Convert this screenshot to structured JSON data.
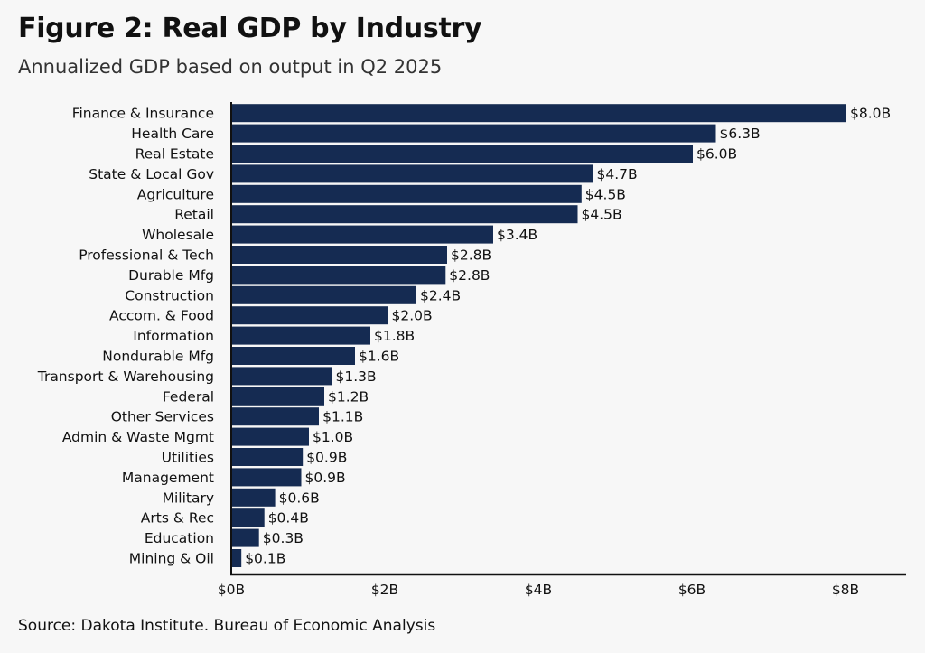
{
  "header": {
    "title": "Figure 2: Real GDP by Industry",
    "subtitle": "Annualized GDP based on output in Q2 2025"
  },
  "footer": {
    "source": "Source: Dakota Institute. Bureau of Economic Analysis"
  },
  "colors": {
    "bar": "#152b52",
    "axis": "#111111"
  },
  "chart_data": {
    "type": "bar",
    "orientation": "horizontal",
    "title": "Figure 2: Real GDP by Industry",
    "subtitle": "Annualized GDP based on output in Q2 2025",
    "xlabel": "",
    "ylabel": "",
    "xlim": [
      0,
      8.75
    ],
    "grid": false,
    "legend": "none",
    "categories": [
      "Finance & Insurance",
      "Health Care",
      "Real Estate",
      "State & Local Gov",
      "Agriculture",
      "Retail",
      "Wholesale",
      "Professional & Tech",
      "Durable Mfg",
      "Construction",
      "Accom. & Food",
      "Information",
      "Nondurable Mfg",
      "Transport & Warehousing",
      "Federal",
      "Other Services",
      "Admin & Waste Mgmt",
      "Utilities",
      "Management",
      "Military",
      "Arts & Rec",
      "Education",
      "Mining & Oil"
    ],
    "values": [
      8.0,
      6.3,
      6.0,
      4.7,
      4.55,
      4.5,
      3.4,
      2.8,
      2.78,
      2.4,
      2.03,
      1.8,
      1.6,
      1.3,
      1.2,
      1.13,
      1.0,
      0.92,
      0.9,
      0.56,
      0.42,
      0.35,
      0.12
    ],
    "value_labels": [
      "$8.0B",
      "$6.3B",
      "$6.0B",
      "$4.7B",
      "$4.5B",
      "$4.5B",
      "$3.4B",
      "$2.8B",
      "$2.8B",
      "$2.4B",
      "$2.0B",
      "$1.8B",
      "$1.6B",
      "$1.3B",
      "$1.2B",
      "$1.1B",
      "$1.0B",
      "$0.9B",
      "$0.9B",
      "$0.6B",
      "$0.4B",
      "$0.3B",
      "$0.1B"
    ],
    "x_ticks": [
      0,
      2,
      4,
      6,
      8
    ],
    "x_tick_labels": [
      "$0B",
      "$2B",
      "$4B",
      "$6B",
      "$8B"
    ]
  }
}
